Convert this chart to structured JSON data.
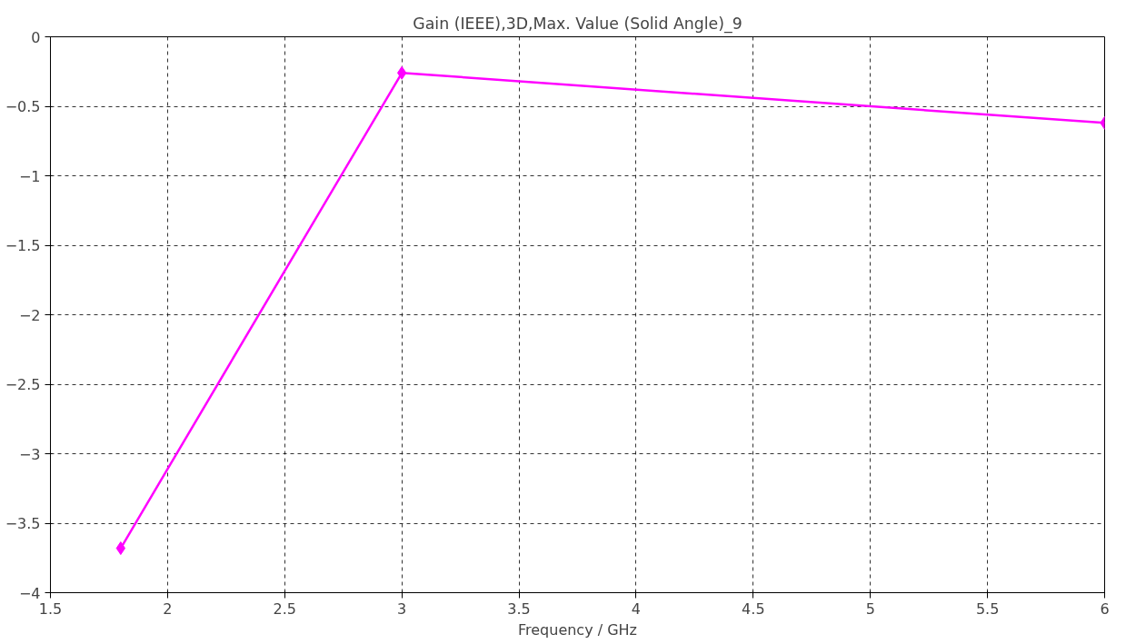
{
  "chart_data": {
    "type": "line",
    "title": "Gain (IEEE),3D,Max. Value (Solid Angle)_9",
    "xlabel": "Frequency / GHz",
    "x": [
      1.8,
      3,
      6
    ],
    "series": [
      {
        "color": "#ff00ff",
        "values": [
          -3.68,
          -0.26,
          -0.62
        ]
      }
    ],
    "xlim": [
      1.5,
      6
    ],
    "xticks": [
      1.5,
      2,
      2.5,
      3,
      3.5,
      4,
      4.5,
      5,
      5.5,
      6
    ],
    "ylim": [
      -4,
      0
    ],
    "yticks": [
      -4,
      -3.5,
      -3,
      -2.5,
      -2,
      -1.5,
      -1,
      -0.5,
      0
    ],
    "grid": true,
    "marker": "diamond",
    "line_style": "solid"
  }
}
